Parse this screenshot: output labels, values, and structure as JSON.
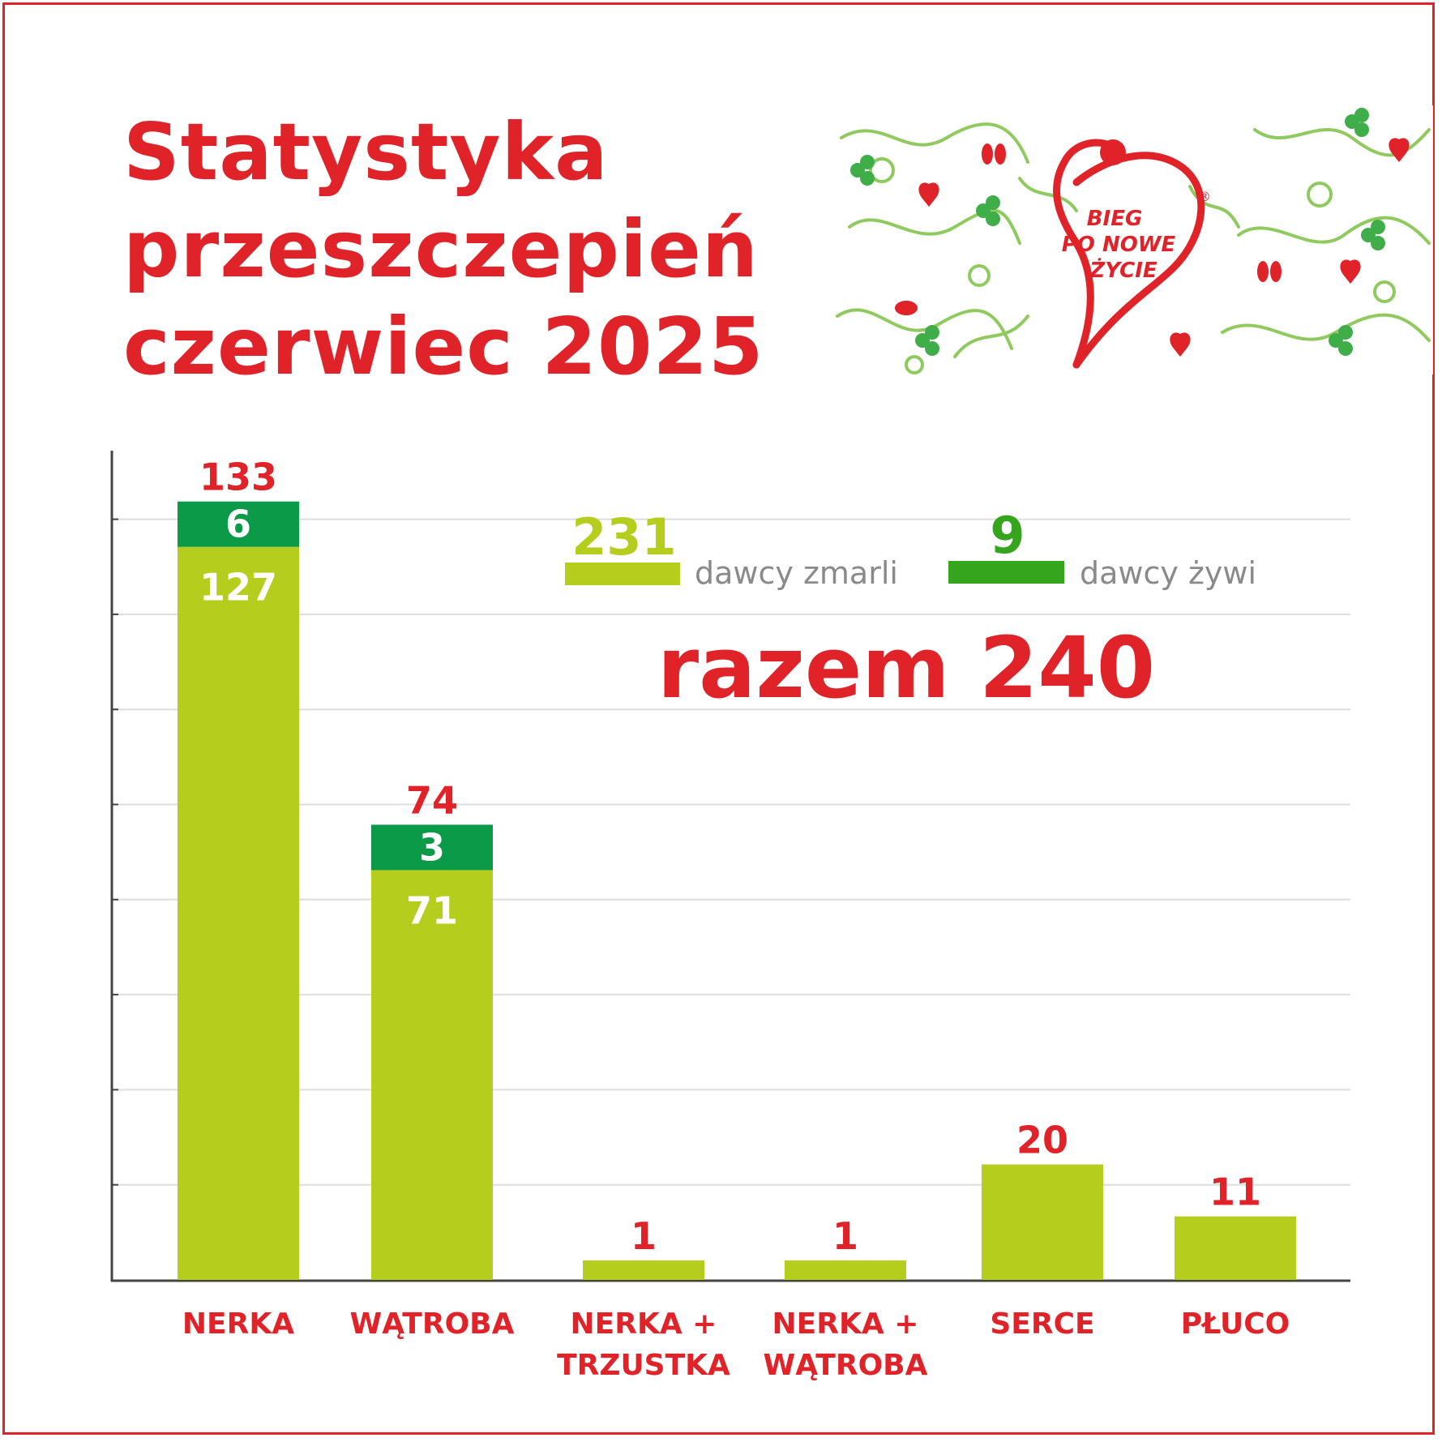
{
  "title": {
    "line1": "Statystyka",
    "line2": "przeszczepień",
    "line3": "czerwiec 2025"
  },
  "logo": {
    "text_line1": "BIEG",
    "text_line2": "PO NOWE",
    "text_line3": "ŻYCIE",
    "registered_mark": "®"
  },
  "colors": {
    "brand_red": "#e02229",
    "deceased_donors": "#b5cd1d",
    "living_donors": "#0b9a48",
    "legend_living_swatch": "#35a51d",
    "gray_text": "#8a8a8a"
  },
  "chart_data": {
    "type": "bar",
    "stacked": true,
    "categories": [
      "NERKA",
      "WĄTROBA",
      "NERKA + TRZUSTKA",
      "NERKA + WĄTROBA",
      "SERCE",
      "PŁUCO"
    ],
    "series": [
      {
        "name": "dawcy zmarli",
        "values": [
          127,
          71,
          1,
          1,
          20,
          11
        ]
      },
      {
        "name": "dawcy żywi",
        "values": [
          6,
          3,
          0,
          0,
          0,
          0
        ]
      }
    ],
    "totals": [
      133,
      74,
      1,
      1,
      20,
      11
    ],
    "ylim": [
      0,
      160
    ],
    "grid": true,
    "legend": {
      "placement": "top-right",
      "deceased_total": "231",
      "deceased_label": "dawcy zmarli",
      "living_total": "9",
      "living_label": "dawcy żywi"
    },
    "summary": "razem 240"
  }
}
